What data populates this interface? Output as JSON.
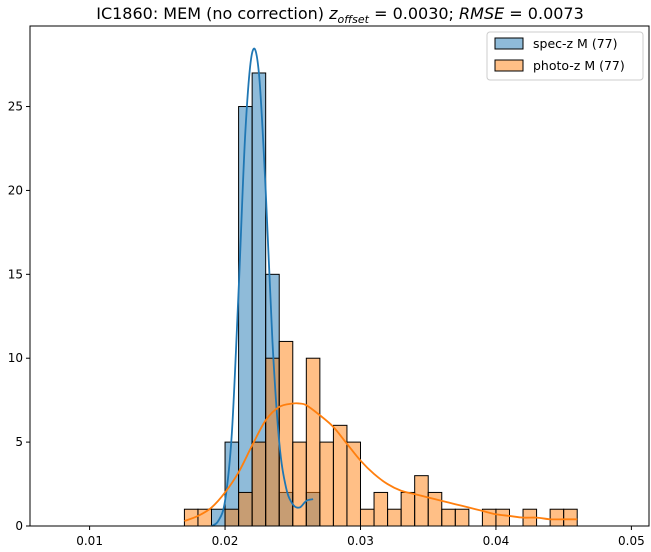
{
  "chart_data": {
    "type": "histogram",
    "title": {
      "prefix": "IC1860: MEM (no correction) ",
      "z_symbol": "z",
      "z_subscript": "offset",
      "z_value": " = 0.0030; ",
      "rmse_label": "RMSE",
      "rmse_value": " = 0.0073"
    },
    "xlabel": "",
    "ylabel": "",
    "xlim": [
      0.0056,
      0.0513
    ],
    "ylim": [
      0,
      29.8
    ],
    "xticks": [
      0.01,
      0.02,
      0.03,
      0.04,
      0.05
    ],
    "xtick_labels": [
      "0.01",
      "0.02",
      "0.03",
      "0.04",
      "0.05"
    ],
    "yticks": [
      0,
      5,
      10,
      15,
      20,
      25
    ],
    "ytick_labels": [
      "0",
      "5",
      "10",
      "15",
      "20",
      "25"
    ],
    "grid": false,
    "legend_position": "top-right",
    "bin_edges": [
      0.017,
      0.018,
      0.019,
      0.02,
      0.021,
      0.022,
      0.023,
      0.024,
      0.025,
      0.026,
      0.027,
      0.028,
      0.029,
      0.03,
      0.031,
      0.032,
      0.033,
      0.034,
      0.035,
      0.036,
      0.037,
      0.038,
      0.039,
      0.04,
      0.041,
      0.042,
      0.043,
      0.044,
      0.045,
      0.046
    ],
    "series": [
      {
        "name": "spec-z M (77)",
        "color": "#1f77b4",
        "bins": [
          {
            "x0": 0.019,
            "x1": 0.02,
            "count": 1
          },
          {
            "x0": 0.02,
            "x1": 0.021,
            "count": 5
          },
          {
            "x0": 0.021,
            "x1": 0.022,
            "count": 25
          },
          {
            "x0": 0.022,
            "x1": 0.023,
            "count": 27
          },
          {
            "x0": 0.023,
            "x1": 0.024,
            "count": 15
          },
          {
            "x0": 0.024,
            "x1": 0.025,
            "count": 2
          },
          {
            "x0": 0.025,
            "x1": 0.026,
            "count": 0
          },
          {
            "x0": 0.026,
            "x1": 0.027,
            "count": 2
          }
        ],
        "kde": {
          "x": [
            0.019,
            0.0195,
            0.02,
            0.0205,
            0.021,
            0.0215,
            0.022,
            0.0225,
            0.023,
            0.0235,
            0.024,
            0.0245,
            0.025,
            0.0255,
            0.026,
            0.0265
          ],
          "y": [
            0.0,
            0.3,
            1.5,
            5.5,
            14.0,
            23.5,
            28.2,
            27.0,
            20.0,
            11.0,
            5.0,
            2.3,
            1.3,
            1.1,
            1.5,
            1.6
          ]
        }
      },
      {
        "name": "photo-z M (77)",
        "color": "#ff7f0e",
        "bins": [
          {
            "x0": 0.017,
            "x1": 0.018,
            "count": 1
          },
          {
            "x0": 0.018,
            "x1": 0.019,
            "count": 1
          },
          {
            "x0": 0.02,
            "x1": 0.021,
            "count": 1
          },
          {
            "x0": 0.021,
            "x1": 0.022,
            "count": 2
          },
          {
            "x0": 0.022,
            "x1": 0.023,
            "count": 5
          },
          {
            "x0": 0.023,
            "x1": 0.024,
            "count": 10
          },
          {
            "x0": 0.024,
            "x1": 0.025,
            "count": 11
          },
          {
            "x0": 0.025,
            "x1": 0.026,
            "count": 5
          },
          {
            "x0": 0.026,
            "x1": 0.027,
            "count": 10
          },
          {
            "x0": 0.027,
            "x1": 0.028,
            "count": 5
          },
          {
            "x0": 0.028,
            "x1": 0.029,
            "count": 6
          },
          {
            "x0": 0.029,
            "x1": 0.03,
            "count": 5
          },
          {
            "x0": 0.03,
            "x1": 0.031,
            "count": 1
          },
          {
            "x0": 0.031,
            "x1": 0.032,
            "count": 2
          },
          {
            "x0": 0.032,
            "x1": 0.033,
            "count": 1
          },
          {
            "x0": 0.033,
            "x1": 0.034,
            "count": 2
          },
          {
            "x0": 0.034,
            "x1": 0.035,
            "count": 3
          },
          {
            "x0": 0.035,
            "x1": 0.036,
            "count": 2
          },
          {
            "x0": 0.036,
            "x1": 0.037,
            "count": 1
          },
          {
            "x0": 0.037,
            "x1": 0.038,
            "count": 1
          },
          {
            "x0": 0.039,
            "x1": 0.04,
            "count": 1
          },
          {
            "x0": 0.04,
            "x1": 0.041,
            "count": 1
          },
          {
            "x0": 0.042,
            "x1": 0.043,
            "count": 1
          },
          {
            "x0": 0.044,
            "x1": 0.045,
            "count": 1
          },
          {
            "x0": 0.045,
            "x1": 0.046,
            "count": 1
          }
        ],
        "kde": {
          "x": [
            0.017,
            0.018,
            0.019,
            0.02,
            0.021,
            0.022,
            0.023,
            0.024,
            0.025,
            0.0255,
            0.026,
            0.027,
            0.028,
            0.029,
            0.03,
            0.031,
            0.032,
            0.033,
            0.034,
            0.035,
            0.036,
            0.037,
            0.038,
            0.039,
            0.04,
            0.041,
            0.042,
            0.043,
            0.044,
            0.045,
            0.046
          ],
          "y": [
            0.3,
            0.6,
            1.1,
            2.0,
            3.2,
            4.8,
            6.3,
            7.1,
            7.3,
            7.3,
            7.2,
            6.6,
            5.9,
            4.9,
            3.9,
            3.1,
            2.5,
            2.1,
            1.9,
            1.7,
            1.5,
            1.3,
            1.1,
            0.9,
            0.7,
            0.6,
            0.5,
            0.5,
            0.4,
            0.4,
            0.4
          ]
        }
      }
    ]
  }
}
